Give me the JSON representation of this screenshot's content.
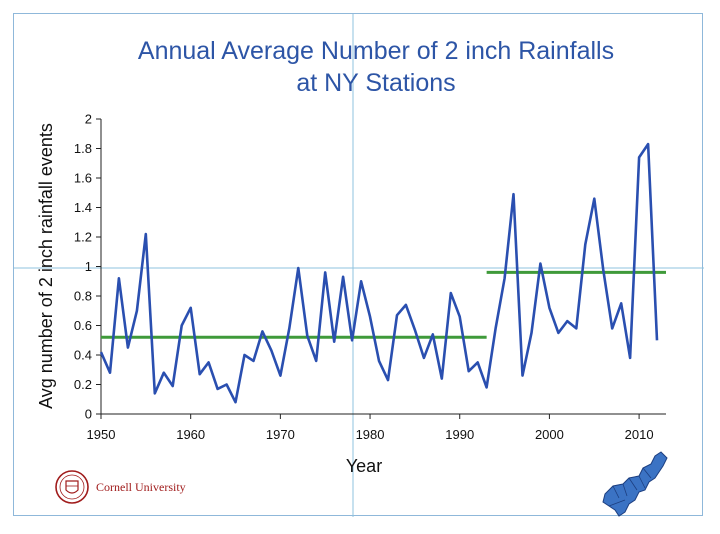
{
  "chart_data": {
    "type": "line",
    "title_lines": [
      "Annual Average Number of 2 inch Rainfalls",
      "at NY Stations"
    ],
    "xlabel": "Year",
    "ylabel": "Avg number of 2 inch rainfall events",
    "xlim": [
      1950,
      2013
    ],
    "ylim": [
      0,
      2
    ],
    "x_ticks": [
      1950,
      1960,
      1970,
      1980,
      1990,
      2000,
      2010
    ],
    "y_ticks": [
      0,
      0.2,
      0.4,
      0.6,
      0.8,
      1,
      1.2,
      1.4,
      1.6,
      1.8,
      2
    ],
    "y_tick_labels": [
      "0",
      "0.2",
      "0.4",
      "0.6",
      "0.8",
      "1",
      "1.2",
      "1.4",
      "1.6",
      "1.8",
      "2"
    ],
    "x_tick_labels": [
      "1950",
      "1960",
      "1970",
      "1980",
      "1990",
      "2000",
      "2010"
    ],
    "series": [
      {
        "color": "#2a4fb0",
        "x": [
          1950,
          1951,
          1952,
          1953,
          1954,
          1955,
          1956,
          1957,
          1958,
          1959,
          1960,
          1961,
          1962,
          1963,
          1964,
          1965,
          1966,
          1967,
          1968,
          1969,
          1970,
          1971,
          1972,
          1973,
          1974,
          1975,
          1976,
          1977,
          1978,
          1979,
          1980,
          1981,
          1982,
          1983,
          1984,
          1985,
          1986,
          1987,
          1988,
          1989,
          1990,
          1991,
          1992,
          1993,
          1994,
          1995,
          1996,
          1997,
          1998,
          1999,
          2000,
          2001,
          2002,
          2003,
          2004,
          2005,
          2006,
          2007,
          2008,
          2009,
          2010,
          2011,
          2012
        ],
        "y": [
          0.42,
          0.28,
          0.92,
          0.45,
          0.7,
          1.22,
          0.14,
          0.28,
          0.19,
          0.6,
          0.72,
          0.27,
          0.35,
          0.17,
          0.2,
          0.08,
          0.4,
          0.36,
          0.56,
          0.43,
          0.26,
          0.58,
          0.99,
          0.53,
          0.36,
          0.96,
          0.49,
          0.93,
          0.5,
          0.9,
          0.66,
          0.36,
          0.23,
          0.67,
          0.74,
          0.57,
          0.38,
          0.54,
          0.24,
          0.82,
          0.66,
          0.29,
          0.35,
          0.18,
          0.58,
          0.92,
          1.49,
          0.26,
          0.55,
          1.02,
          0.72,
          0.55,
          0.63,
          0.58,
          1.15,
          1.46,
          0.98,
          0.58,
          0.75,
          0.38,
          1.74,
          1.83,
          0.5
        ]
      }
    ],
    "reference_lines": [
      {
        "x_start": 1950,
        "x_end": 1993,
        "y": 0.52,
        "color": "#3f9a3a"
      },
      {
        "x_start": 1993,
        "x_end": 2013,
        "y": 0.96,
        "color": "#3f9a3a"
      }
    ],
    "grid": false,
    "legend": "none"
  },
  "logo": {
    "text": "Cornell University",
    "icon": "cornell-seal-icon"
  },
  "map_icon": "northeast-us-map-icon",
  "colors": {
    "title": "#2d55a6",
    "line": "#2a4fb0",
    "mean_line": "#3f9a3a",
    "crosshair": "#8fc3df",
    "logo": "#a01c1c",
    "map": "#3b73c4"
  }
}
